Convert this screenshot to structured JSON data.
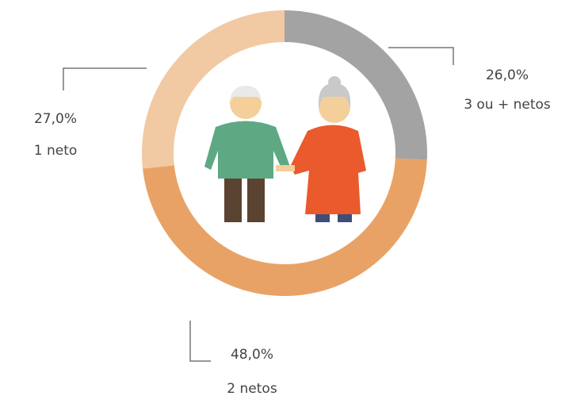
{
  "chart_data": {
    "type": "donut",
    "categories": [
      "3 ou + netos",
      "2 netos",
      "1 neto"
    ],
    "values": [
      26,
      48,
      27
    ],
    "value_labels": [
      "26,0%",
      "48,0%",
      "27,0%"
    ],
    "colors": [
      "#a3a3a3",
      "#e9a266",
      "#f1c9a2"
    ]
  }
}
